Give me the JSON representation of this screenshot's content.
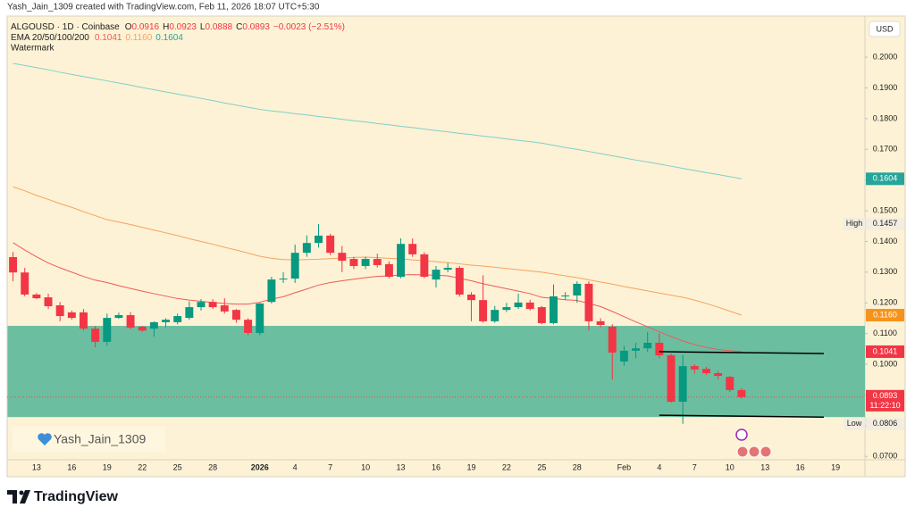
{
  "chart_data": {
    "type": "candlestick",
    "header": "Yash_Jain_1309 created with TradingView.com, Feb 11, 2026 18:07 UTC+5:30",
    "symbol": "ALGOUSD · 1D · Coinbase",
    "ohlc_legend": [
      {
        "label": "O",
        "value": "0.0916"
      },
      {
        "label": "H",
        "value": "0.0923"
      },
      {
        "label": "L",
        "value": "0.0888"
      },
      {
        "label": "C",
        "value": "0.0893"
      }
    ],
    "change": "−0.0023 (−2.51%)",
    "indicator": "EMA 20/50/100/200",
    "watermark": "Watermark",
    "currency": "USD",
    "author": "Yash_Jain_1309",
    "brand": "TradingView",
    "up_color": "#089981",
    "down_color": "#f23645",
    "ylim": [
      0.0689,
      0.2134
    ],
    "yticks": [
      {
        "value": 0.07,
        "label": "0.0700"
      },
      {
        "value": 0.08,
        "label": "0.0800"
      },
      {
        "value": 0.09,
        "label": "0.0900"
      },
      {
        "value": 0.1,
        "label": "0.1000"
      },
      {
        "value": 0.11,
        "label": "0.1100"
      },
      {
        "value": 0.12,
        "label": "0.1200"
      },
      {
        "value": 0.13,
        "label": "0.1300"
      },
      {
        "value": 0.14,
        "label": "0.1400"
      },
      {
        "value": 0.15,
        "label": "0.1500"
      },
      {
        "value": 0.16,
        "label": "0.1600"
      },
      {
        "value": 0.17,
        "label": "0.1700"
      },
      {
        "value": 0.18,
        "label": "0.1800"
      },
      {
        "value": 0.19,
        "label": "0.1900"
      },
      {
        "value": 0.2,
        "label": "0.2000"
      }
    ],
    "grid": false,
    "categories": [
      null,
      null,
      "13",
      null,
      null,
      "16",
      null,
      null,
      "19",
      null,
      null,
      "22",
      null,
      null,
      "25",
      null,
      null,
      "28",
      null,
      null,
      null,
      "2026",
      null,
      null,
      "4",
      null,
      null,
      "7",
      null,
      null,
      "10",
      null,
      null,
      "13",
      null,
      null,
      "16",
      null,
      null,
      "19",
      null,
      null,
      "22",
      null,
      null,
      "25",
      null,
      null,
      "28",
      null,
      null,
      null,
      "Feb",
      null,
      null,
      "4",
      null,
      null,
      "7",
      null,
      null,
      "10",
      null,
      null,
      "13",
      null,
      null,
      "16",
      null,
      null,
      "19",
      null,
      null
    ],
    "open": [
      0.1349,
      0.1299,
      0.1227,
      0.1218,
      0.1192,
      0.1169,
      0.1169,
      0.1116,
      0.1073,
      0.1151,
      0.116,
      0.1122,
      0.1116,
      0.1137,
      0.1137,
      0.1151,
      0.1186,
      0.1203,
      0.1192,
      0.1177,
      0.1145,
      0.1102,
      0.1203,
      0.1276,
      0.1279,
      0.1363,
      0.1395,
      0.1419,
      0.1363,
      0.1343,
      0.132,
      0.1343,
      0.1326,
      0.1285,
      0.1392,
      0.1358,
      0.1276,
      0.1308,
      0.1314,
      0.1227,
      0.1209,
      0.114,
      0.1177,
      0.1186,
      0.1201,
      0.1186,
      0.1134,
      0.1221,
      0.1224,
      0.1262,
      0.114,
      0.1122,
      0.1009,
      0.1044,
      0.1052,
      0.107,
      0.1029,
      0.0878,
      0.0994,
      0.0985,
      0.0971,
      0.0959,
      0.0916,
      null,
      null,
      null,
      null,
      null,
      null,
      null,
      null,
      null,
      null
    ],
    "high": [
      0.1366,
      0.1314,
      0.1232,
      0.123,
      0.1203,
      0.1175,
      0.118,
      0.1125,
      0.1165,
      0.1168,
      0.117,
      0.1125,
      0.114,
      0.115,
      0.1165,
      0.1205,
      0.1212,
      0.1212,
      0.1215,
      0.118,
      0.115,
      0.12,
      0.1285,
      0.13,
      0.139,
      0.142,
      0.1457,
      0.1425,
      0.1385,
      0.135,
      0.135,
      0.136,
      0.1335,
      0.141,
      0.141,
      0.1365,
      0.132,
      0.133,
      0.132,
      0.1235,
      0.129,
      0.119,
      0.12,
      0.123,
      0.121,
      0.119,
      0.126,
      0.1235,
      0.127,
      0.127,
      0.115,
      0.113,
      0.106,
      0.107,
      0.1105,
      0.11,
      0.1035,
      0.103,
      0.1,
      0.0992,
      0.0978,
      0.0962,
      0.0923,
      null,
      null,
      null,
      null,
      null,
      null,
      null,
      null,
      null,
      null
    ],
    "low": [
      0.127,
      0.1221,
      0.1212,
      0.118,
      0.114,
      0.1145,
      0.111,
      0.1055,
      0.106,
      0.1148,
      0.1114,
      0.1105,
      0.109,
      0.112,
      0.113,
      0.1145,
      0.1175,
      0.118,
      0.1165,
      0.1135,
      0.1095,
      0.1095,
      0.1198,
      0.1265,
      0.1265,
      0.135,
      0.138,
      0.1355,
      0.13,
      0.131,
      0.131,
      0.1315,
      0.128,
      0.128,
      0.135,
      0.128,
      0.125,
      0.13,
      0.122,
      0.114,
      0.1135,
      0.1135,
      0.117,
      0.118,
      0.1175,
      0.113,
      0.113,
      0.121,
      0.12,
      0.111,
      0.112,
      0.095,
      0.0995,
      0.102,
      0.104,
      0.102,
      0.0875,
      0.0806,
      0.097,
      0.0965,
      0.095,
      0.091,
      0.0888,
      null,
      null,
      null,
      null,
      null,
      null,
      null,
      null,
      null,
      null
    ],
    "close": [
      0.1299,
      0.1227,
      0.1215,
      0.1189,
      0.1157,
      0.1151,
      0.1116,
      0.1073,
      0.1151,
      0.116,
      0.1119,
      0.111,
      0.1137,
      0.1145,
      0.1157,
      0.1186,
      0.1203,
      0.1186,
      0.1172,
      0.1145,
      0.1102,
      0.1198,
      0.1276,
      0.1279,
      0.1363,
      0.1395,
      0.1419,
      0.1363,
      0.1337,
      0.132,
      0.1343,
      0.1323,
      0.1285,
      0.1392,
      0.1358,
      0.1285,
      0.1308,
      0.1314,
      0.1227,
      0.1209,
      0.114,
      0.1177,
      0.1186,
      0.1201,
      0.118,
      0.1134,
      0.1221,
      0.1224,
      0.1262,
      0.114,
      0.1128,
      0.1038,
      0.1044,
      0.1052,
      0.107,
      0.1029,
      0.0878,
      0.0994,
      0.0983,
      0.0971,
      0.0962,
      0.0916,
      0.0893,
      null,
      null,
      null,
      null,
      null,
      null,
      null,
      null,
      null,
      null
    ],
    "series": [
      {
        "color": "#f05a57",
        "legend_value": "0.1041",
        "values": [
          0.1396,
          0.1372,
          0.135,
          0.133,
          0.1314,
          0.13,
          0.1286,
          0.1274,
          0.1266,
          0.1256,
          0.1247,
          0.1238,
          0.123,
          0.1222,
          0.1214,
          0.1209,
          0.1205,
          0.1201,
          0.1198,
          0.1196,
          0.1196,
          0.1202,
          0.1212,
          0.122,
          0.1233,
          0.1245,
          0.1258,
          0.1266,
          0.1272,
          0.1277,
          0.1282,
          0.1286,
          0.1288,
          0.1291,
          0.1292,
          0.1291,
          0.129,
          0.1288,
          0.128,
          0.1272,
          0.1262,
          0.1254,
          0.1246,
          0.1238,
          0.123,
          0.1218,
          0.1214,
          0.121,
          0.1208,
          0.1198,
          0.1188,
          0.1172,
          0.1155,
          0.1138,
          0.1122,
          0.1106,
          0.109,
          0.1076,
          0.1064,
          0.1055,
          0.1048,
          0.1044,
          0.1041,
          null,
          null,
          null,
          null,
          null,
          null,
          null,
          null,
          null,
          null
        ]
      },
      {
        "color": "#f6a35e",
        "legend_value": "0.1160",
        "values": [
          0.1578,
          0.1565,
          0.155,
          0.1537,
          0.1523,
          0.1511,
          0.1497,
          0.1484,
          0.1471,
          0.1463,
          0.1455,
          0.1446,
          0.1437,
          0.1428,
          0.1419,
          0.1409,
          0.14,
          0.1391,
          0.1381,
          0.1372,
          0.1362,
          0.1352,
          0.1345,
          0.1341,
          0.134,
          0.1341,
          0.1342,
          0.1344,
          0.1346,
          0.1348,
          0.1349,
          0.1347,
          0.1345,
          0.1343,
          0.134,
          0.1337,
          0.1334,
          0.1331,
          0.1327,
          0.1323,
          0.132,
          0.1316,
          0.1312,
          0.1308,
          0.1304,
          0.13,
          0.1294,
          0.1288,
          0.1282,
          0.1275,
          0.1268,
          0.1261,
          0.1253,
          0.1246,
          0.1239,
          0.1232,
          0.1225,
          0.1218,
          0.1209,
          0.1198,
          0.1186,
          0.1173,
          0.116,
          null,
          null,
          null,
          null,
          null,
          null,
          null,
          null,
          null,
          null
        ]
      },
      {
        "color": "#7fcfcb",
        "legend_value": "0.1604",
        "values": [
          0.198,
          0.1973,
          0.1966,
          0.1959,
          0.1951,
          0.1944,
          0.1937,
          0.193,
          0.1923,
          0.1916,
          0.1909,
          0.1901,
          0.1894,
          0.1887,
          0.188,
          0.1873,
          0.1866,
          0.1859,
          0.1851,
          0.1844,
          0.1837,
          0.183,
          0.1825,
          0.1821,
          0.1816,
          0.1812,
          0.1807,
          0.1803,
          0.1798,
          0.1793,
          0.1789,
          0.1784,
          0.178,
          0.1775,
          0.1771,
          0.1766,
          0.1761,
          0.1757,
          0.1752,
          0.1748,
          0.1743,
          0.1739,
          0.1734,
          0.1729,
          0.1725,
          0.172,
          0.1713,
          0.1706,
          0.17,
          0.1693,
          0.1686,
          0.1679,
          0.1672,
          0.1665,
          0.1659,
          0.1652,
          0.1645,
          0.1638,
          0.1631,
          0.1624,
          0.1618,
          0.1611,
          0.1604,
          null,
          null,
          null,
          null,
          null,
          null,
          null,
          null,
          null,
          null
        ]
      }
    ],
    "zones": [
      {
        "from": 0.0828,
        "to": 0.1125,
        "color": "#6cbea0"
      }
    ],
    "trend_lines": [
      {
        "x": [
          55,
          69
        ],
        "y": [
          0.1041,
          0.1035
        ],
        "color": "#000000"
      },
      {
        "x": [
          55,
          69
        ],
        "y": [
          0.0834,
          0.0828
        ],
        "color": "#000000"
      }
    ],
    "last_price": {
      "value": 0.0893,
      "label": "0.0893",
      "countdown": "11:22:10",
      "color": "#f23645"
    },
    "axis_badges": [
      {
        "value": 0.1604,
        "label": "0.1604",
        "color": "#26a69a"
      },
      {
        "value": 0.1457,
        "label": "0.1457",
        "tag": "High"
      },
      {
        "value": 0.116,
        "label": "0.1160",
        "color": "#f7931a"
      },
      {
        "value": 0.1041,
        "label": "0.1041",
        "color": "#f23645"
      },
      {
        "value": 0.0806,
        "label": "0.0806",
        "tag": "Low"
      }
    ]
  }
}
